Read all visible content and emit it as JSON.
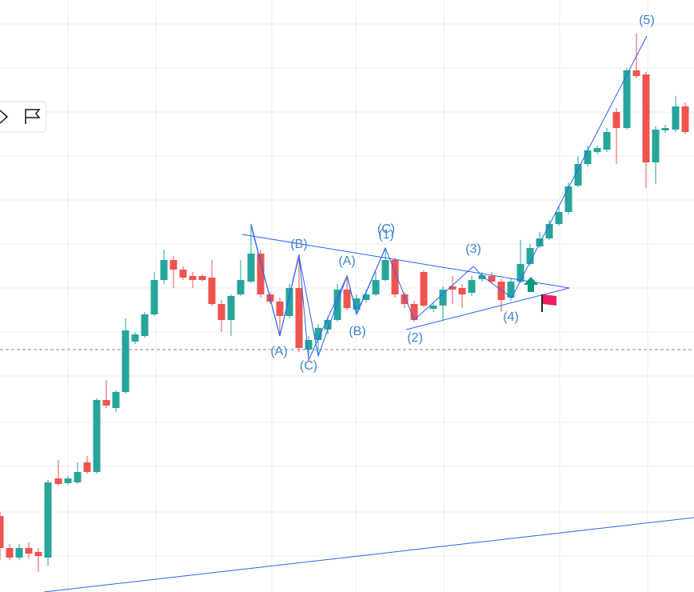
{
  "wave_labels": [
    "(A)",
    "(B)",
    "(C)",
    "(A)",
    "(B)",
    "(C)",
    "(1)",
    "(2)",
    "(3)",
    "(4)",
    "(5)"
  ]
}
